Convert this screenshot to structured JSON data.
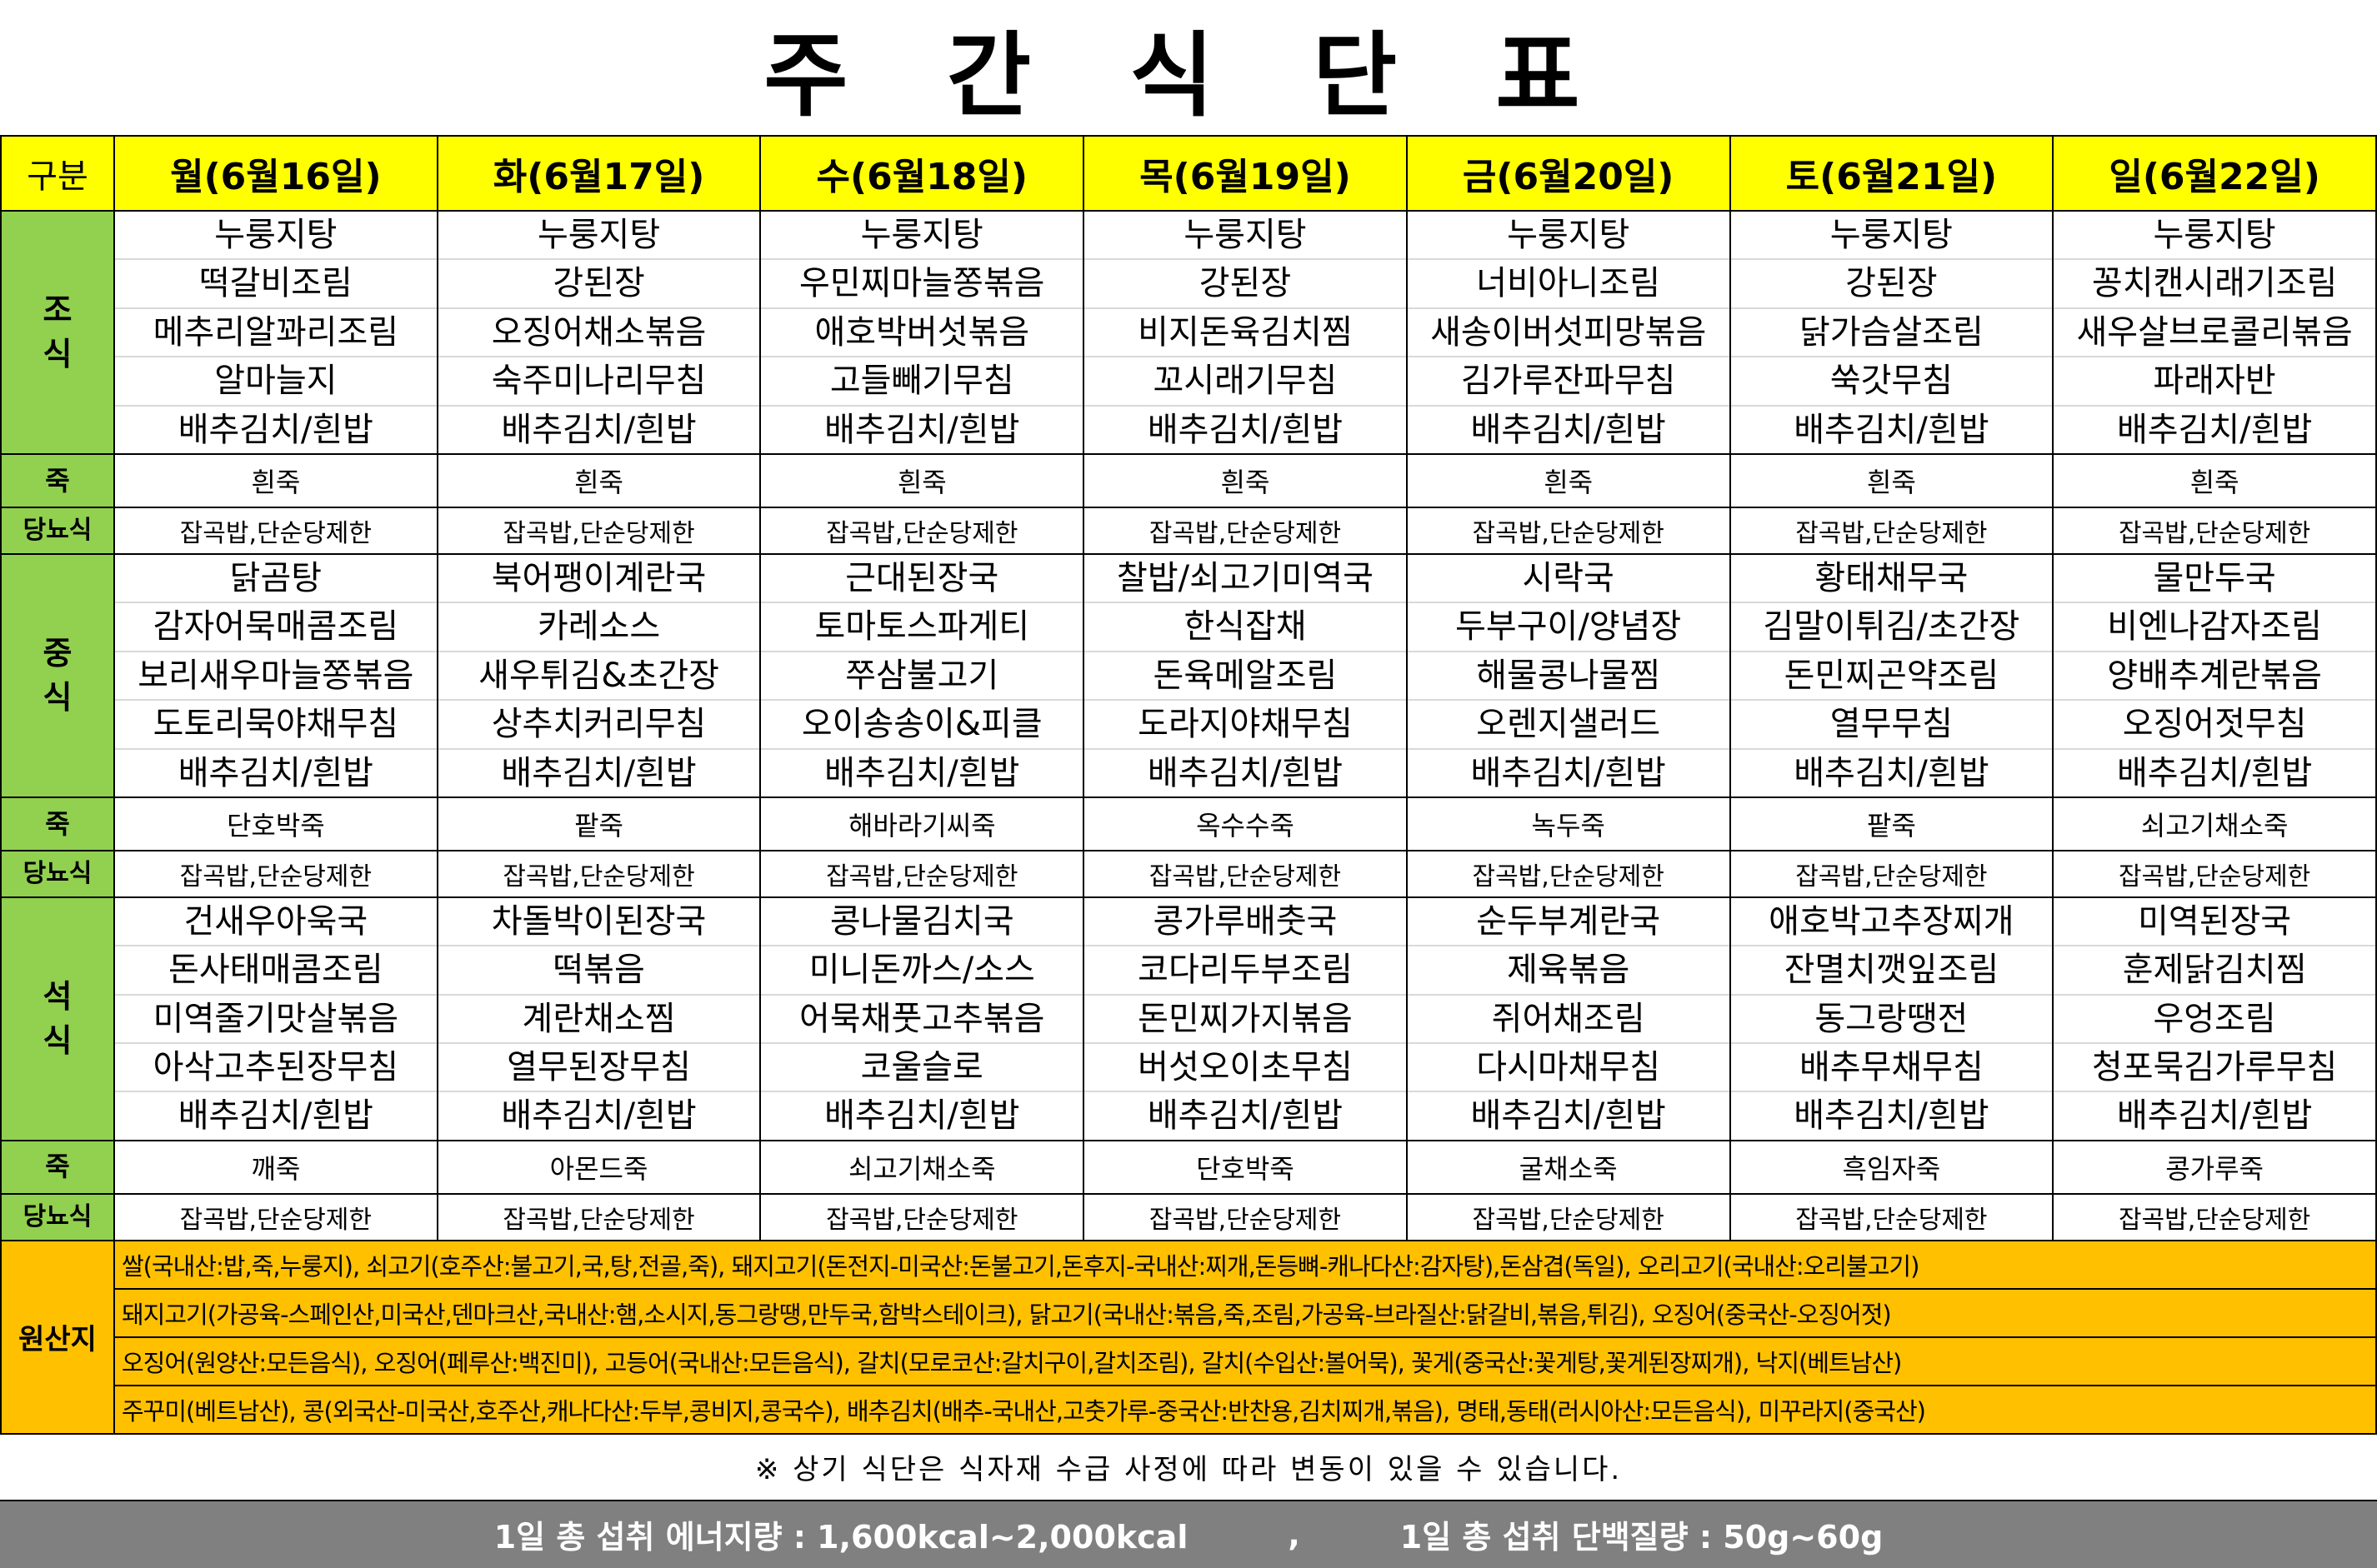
{
  "title": "주 간 식 단 표",
  "header": {
    "category_label": "구분",
    "days": [
      "월(6월16일)",
      "화(6월17일)",
      "수(6월18일)",
      "목(6월19일)",
      "금(6월20일)",
      "토(6월21일)",
      "일(6월22일)"
    ]
  },
  "labels": {
    "breakfast": "조 식",
    "lunch": "중 식",
    "dinner": "석 식",
    "porridge": "죽",
    "diabetic": "당뇨식",
    "origin": "원산지"
  },
  "meals": [
    {
      "key": "breakfast",
      "menus": [
        [
          "누룽지탕",
          "떡갈비조림",
          "메추리알꽈리조림",
          "알마늘지",
          "배추김치/흰밥"
        ],
        [
          "누룽지탕",
          "강된장",
          "오징어채소볶음",
          "숙주미나리무침",
          "배추김치/흰밥"
        ],
        [
          "누룽지탕",
          "우민찌마늘쫑볶음",
          "애호박버섯볶음",
          "고들빼기무침",
          "배추김치/흰밥"
        ],
        [
          "누룽지탕",
          "강된장",
          "비지돈육김치찜",
          "꼬시래기무침",
          "배추김치/흰밥"
        ],
        [
          "누룽지탕",
          "너비아니조림",
          "새송이버섯피망볶음",
          "김가루잔파무침",
          "배추김치/흰밥"
        ],
        [
          "누룽지탕",
          "강된장",
          "닭가슴살조림",
          "쑥갓무침",
          "배추김치/흰밥"
        ],
        [
          "누룽지탕",
          "꽁치캔시래기조림",
          "새우살브로콜리볶음",
          "파래자반",
          "배추김치/흰밥"
        ]
      ],
      "porridge": [
        "흰죽",
        "흰죽",
        "흰죽",
        "흰죽",
        "흰죽",
        "흰죽",
        "흰죽"
      ],
      "diabetic": [
        "잡곡밥,단순당제한",
        "잡곡밥,단순당제한",
        "잡곡밥,단순당제한",
        "잡곡밥,단순당제한",
        "잡곡밥,단순당제한",
        "잡곡밥,단순당제한",
        "잡곡밥,단순당제한"
      ]
    },
    {
      "key": "lunch",
      "menus": [
        [
          "닭곰탕",
          "감자어묵매콤조림",
          "보리새우마늘쫑볶음",
          "도토리묵야채무침",
          "배추김치/흰밥"
        ],
        [
          "북어팽이계란국",
          "카레소스",
          "새우튀김&초간장",
          "상추치커리무침",
          "배추김치/흰밥"
        ],
        [
          "근대된장국",
          "토마토스파게티",
          "쭈삼불고기",
          "오이송송이&피클",
          "배추김치/흰밥"
        ],
        [
          "찰밥/쇠고기미역국",
          "한식잡채",
          "돈육메알조림",
          "도라지야채무침",
          "배추김치/흰밥"
        ],
        [
          "시락국",
          "두부구이/양념장",
          "해물콩나물찜",
          "오렌지샐러드",
          "배추김치/흰밥"
        ],
        [
          "황태채무국",
          "김말이튀김/초간장",
          "돈민찌곤약조림",
          "열무무침",
          "배추김치/흰밥"
        ],
        [
          "물만두국",
          "비엔나감자조림",
          "양배추계란볶음",
          "오징어젓무침",
          "배추김치/흰밥"
        ]
      ],
      "porridge": [
        "단호박죽",
        "팥죽",
        "해바라기씨죽",
        "옥수수죽",
        "녹두죽",
        "팥죽",
        "쇠고기채소죽"
      ],
      "diabetic": [
        "잡곡밥,단순당제한",
        "잡곡밥,단순당제한",
        "잡곡밥,단순당제한",
        "잡곡밥,단순당제한",
        "잡곡밥,단순당제한",
        "잡곡밥,단순당제한",
        "잡곡밥,단순당제한"
      ]
    },
    {
      "key": "dinner",
      "menus": [
        [
          "건새우아욱국",
          "돈사태매콤조림",
          "미역줄기맛살볶음",
          "아삭고추된장무침",
          "배추김치/흰밥"
        ],
        [
          "차돌박이된장국",
          "떡볶음",
          "계란채소찜",
          "열무된장무침",
          "배추김치/흰밥"
        ],
        [
          "콩나물김치국",
          "미니돈까스/소스",
          "어묵채풋고추볶음",
          "코울슬로",
          "배추김치/흰밥"
        ],
        [
          "콩가루배춧국",
          "코다리두부조림",
          "돈민찌가지볶음",
          "버섯오이초무침",
          "배추김치/흰밥"
        ],
        [
          "순두부계란국",
          "제육볶음",
          "쥐어채조림",
          "다시마채무침",
          "배추김치/흰밥"
        ],
        [
          "애호박고추장찌개",
          "잔멸치깻잎조림",
          "동그랑땡전",
          "배추무채무침",
          "배추김치/흰밥"
        ],
        [
          "미역된장국",
          "훈제닭김치찜",
          "우엉조림",
          "청포묵김가루무침",
          "배추김치/흰밥"
        ]
      ],
      "porridge": [
        "깨죽",
        "아몬드죽",
        "쇠고기채소죽",
        "단호박죽",
        "굴채소죽",
        "흑임자죽",
        "콩가루죽"
      ],
      "diabetic": [
        "잡곡밥,단순당제한",
        "잡곡밥,단순당제한",
        "잡곡밥,단순당제한",
        "잡곡밥,단순당제한",
        "잡곡밥,단순당제한",
        "잡곡밥,단순당제한",
        "잡곡밥,단순당제한"
      ]
    }
  ],
  "origin_lines": [
    "쌀(국내산:밥,죽,누룽지), 쇠고기(호주산:불고기,국,탕,전골,죽), 돼지고기(돈전지-미국산:돈불고기,돈후지-국내산:찌개,돈등뼈-캐나다산:감자탕),돈삼겹(독일), 오리고기(국내산:오리불고기)",
    "돼지고기(가공육-스페인산,미국산,덴마크산,국내산:햄,소시지,동그랑땡,만두국,함박스테이크), 닭고기(국내산:볶음,죽,조림,가공육-브라질산:닭갈비,볶음,튀김), 오징어(중국산-오징어젓)",
    "오징어(원양산:모든음식), 오징어(페루산:백진미), 고등어(국내산:모든음식), 갈치(모로코산:갈치구이,갈치조림), 갈치(수입산:볼어묵), 꽃게(중국산:꽃게탕,꽃게된장찌개), 낙지(베트남산)",
    "주꾸미(베트남산), 콩(외국산-미국산,호주산,캐나다산:두부,콩비지,콩국수), 배추김치(배추-국내산,고춧가루-중국산:반찬용,김치찌개,볶음), 명태,동태(러시아산:모든음식), 미꾸라지(중국산)"
  ],
  "note": "※ 상기 식단은 식자재 수급 사정에 따라 변동이 있을 수 있습니다.",
  "footer": {
    "energy": "1일 총 섭취 에너지량   :  1,600kcal~2,000kcal",
    "separator": ",",
    "protein": "1일 총 섭취 단백질량 : 50g~60g"
  },
  "colors": {
    "header": "#ffff00",
    "label": "#92d050",
    "origin": "#ffc000",
    "footer": "#808080"
  }
}
